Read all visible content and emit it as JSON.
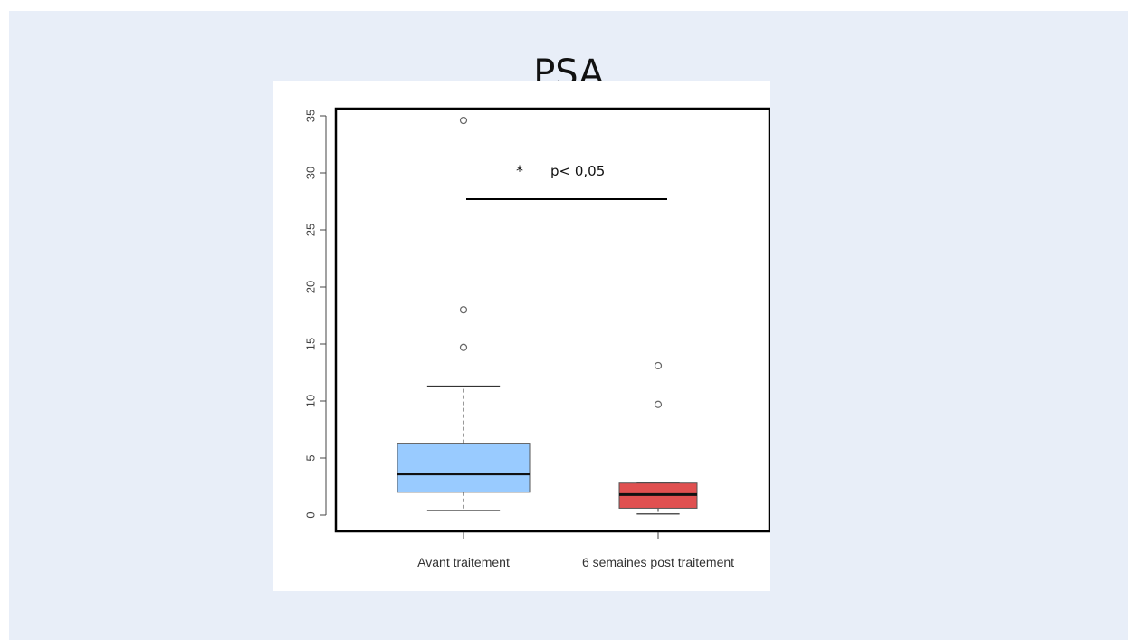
{
  "title": "PSA",
  "annotation": {
    "star": "*",
    "pvalue": "p< 0,05"
  },
  "colors": {
    "avant": "#99cbff",
    "post": "#e05050",
    "background": "#e8eef8"
  },
  "chart_data": {
    "type": "box",
    "title": "PSA",
    "xlabel": "",
    "ylabel": "",
    "ylim": [
      -1.5,
      36
    ],
    "yticks": [
      "0",
      "5",
      "10",
      "15",
      "20",
      "25",
      "30",
      "35"
    ],
    "ytick_values": [
      0,
      5,
      10,
      15,
      20,
      25,
      30,
      35
    ],
    "categories": [
      "Avant traitement",
      "6 semaines post traitement"
    ],
    "series": [
      {
        "category": "Avant traitement",
        "whisker_low": 0.4,
        "q1": 2.0,
        "median": 3.6,
        "q3": 6.3,
        "whisker_high": 11.3,
        "outliers": [
          14.7,
          18.0,
          34.6
        ],
        "color": "#99cbff"
      },
      {
        "category": "6 semaines post traitement",
        "whisker_low": 0.1,
        "q1": 0.6,
        "median": 1.8,
        "q3": 2.8,
        "whisker_high": 2.8,
        "outliers": [
          9.7,
          13.1
        ],
        "color": "#e05050"
      }
    ],
    "significance": {
      "between": [
        "Avant traitement",
        "6 semaines post traitement"
      ],
      "y": 27.7,
      "label": "p< 0,05",
      "marker": "*"
    },
    "grid": false
  }
}
